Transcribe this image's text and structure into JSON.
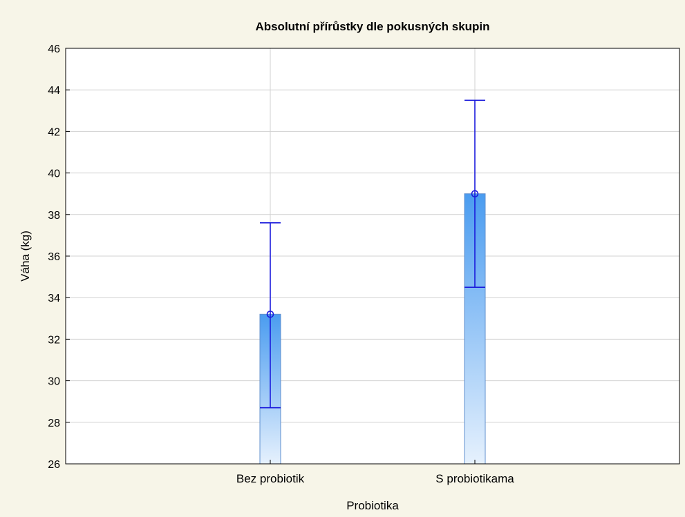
{
  "chart_data": {
    "type": "bar",
    "title": "Absolutní přírůstky dle pokusných skupin",
    "xlabel": "Probiotika",
    "ylabel": "Váha (kg)",
    "categories": [
      "Bez probiotik",
      "S probiotikama"
    ],
    "values": [
      33.2,
      39.0
    ],
    "error_bars": [
      {
        "lower": 28.7,
        "upper": 37.6
      },
      {
        "lower": 34.5,
        "upper": 43.5
      }
    ],
    "ylim": [
      26,
      46
    ],
    "yticks": [
      26,
      28,
      30,
      32,
      34,
      36,
      38,
      40,
      42,
      44,
      46
    ],
    "ytick_labels": [
      "26",
      "28",
      "30",
      "32",
      "34",
      "36",
      "38",
      "40",
      "42",
      "44",
      "46"
    ],
    "grid": true,
    "colors": {
      "background": "#f7f5e8",
      "plot_background": "#ffffff",
      "bar_top": "#4a9cf0",
      "bar_bottom": "#e6f1fd",
      "bar_edge": "#5f8fce",
      "error_bar": "#1a1adc",
      "grid": "#d0d0d0"
    }
  }
}
